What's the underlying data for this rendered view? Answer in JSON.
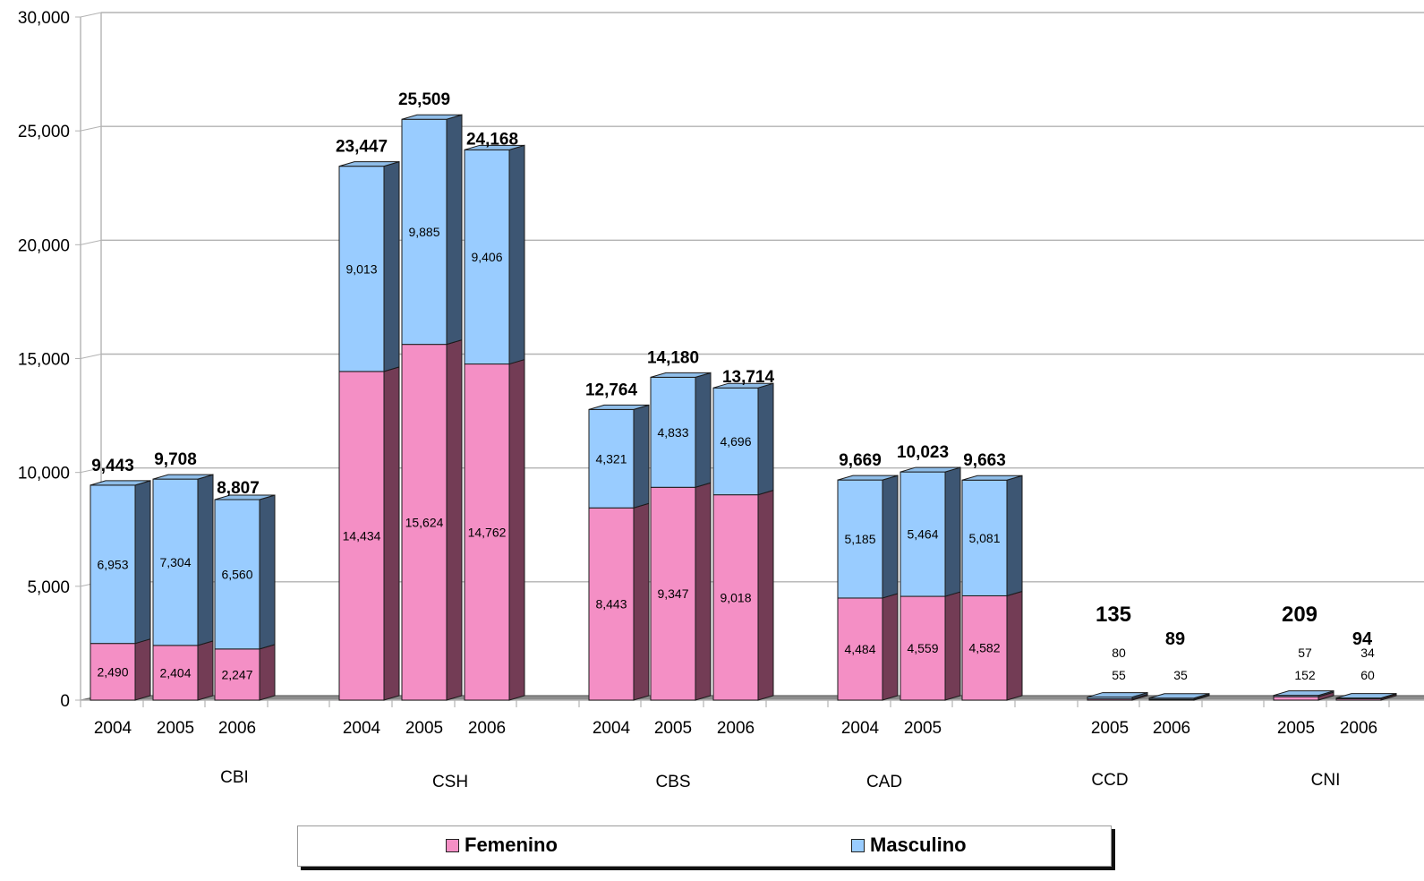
{
  "chart_data": {
    "type": "bar",
    "stacked": true,
    "style": "3d",
    "y_ticks": [
      "0",
      "5,000",
      "10,000",
      "15,000",
      "20,000",
      "25,000",
      "30,000"
    ],
    "ylim": [
      0,
      30000
    ],
    "grid": true,
    "legend_position": "bottom",
    "series": [
      {
        "name": "Femenino",
        "color": "#f48fc5"
      },
      {
        "name": "Masculino",
        "color": "#99ccff"
      }
    ],
    "groups": [
      {
        "name": "CBI",
        "bars": [
          {
            "year": "2004",
            "femenino": 2490,
            "masculino": 6953,
            "total": 9443,
            "femenino_label": "2,490",
            "masculino_label": "6,953",
            "total_label": "9,443"
          },
          {
            "year": "2005",
            "femenino": 2404,
            "masculino": 7304,
            "total": 9708,
            "femenino_label": "2,404",
            "masculino_label": "7,304",
            "total_label": "9,708"
          },
          {
            "year": "2006",
            "femenino": 2247,
            "masculino": 6560,
            "total": 8807,
            "femenino_label": "2,247",
            "masculino_label": "6,560",
            "total_label": "8,807"
          }
        ]
      },
      {
        "name": "CSH",
        "bars": [
          {
            "year": "2004",
            "femenino": 14434,
            "masculino": 9013,
            "total": 23447,
            "femenino_label": "14,434",
            "masculino_label": "9,013",
            "total_label": "23,447"
          },
          {
            "year": "2005",
            "femenino": 15624,
            "masculino": 9885,
            "total": 25509,
            "femenino_label": "15,624",
            "masculino_label": "9,885",
            "total_label": "25,509"
          },
          {
            "year": "2006",
            "femenino": 14762,
            "masculino": 9406,
            "total": 24168,
            "femenino_label": "14,762",
            "masculino_label": "9,406",
            "total_label": "24,168"
          }
        ]
      },
      {
        "name": "CBS",
        "bars": [
          {
            "year": "2004",
            "femenino": 8443,
            "masculino": 4321,
            "total": 12764,
            "femenino_label": "8,443",
            "masculino_label": "4,321",
            "total_label": "12,764"
          },
          {
            "year": "2005",
            "femenino": 9347,
            "masculino": 4833,
            "total": 14180,
            "femenino_label": "9,347",
            "masculino_label": "4,833",
            "total_label": "14,180"
          },
          {
            "year": "2006",
            "femenino": 9018,
            "masculino": 4696,
            "total": 13714,
            "femenino_label": "9,018",
            "masculino_label": "4,696",
            "total_label": "13,714"
          }
        ]
      },
      {
        "name": "CAD",
        "bars": [
          {
            "year": "2004",
            "femenino": 4484,
            "masculino": 5185,
            "total": 9669,
            "femenino_label": "4,484",
            "masculino_label": "5,185",
            "total_label": "9,669"
          },
          {
            "year": "2005",
            "femenino": 4559,
            "masculino": 5464,
            "total": 10023,
            "femenino_label": "4,559",
            "masculino_label": "5,464",
            "total_label": "10,023"
          },
          {
            "year": "",
            "femenino": 4582,
            "masculino": 5081,
            "total": 9663,
            "femenino_label": "4,582",
            "masculino_label": "5,081",
            "total_label": "9,663"
          }
        ]
      },
      {
        "name": "CCD",
        "bars": [
          {
            "year": "2005",
            "femenino": 55,
            "masculino": 80,
            "total": 135,
            "femenino_label": "55",
            "masculino_label": "80",
            "total_label": "135"
          },
          {
            "year": "2006",
            "femenino": 35,
            "masculino": 54,
            "total": 89,
            "femenino_label": "35",
            "masculino_label": "",
            "total_label": "89"
          }
        ]
      },
      {
        "name": "CNI",
        "bars": [
          {
            "year": "2005",
            "femenino": 152,
            "masculino": 57,
            "total": 209,
            "femenino_label": "152",
            "masculino_label": "57",
            "total_label": "209"
          },
          {
            "year": "2006",
            "femenino": 60,
            "masculino": 34,
            "total": 94,
            "femenino_label": "60",
            "masculino_label": "34",
            "total_label": "94"
          }
        ]
      }
    ]
  }
}
